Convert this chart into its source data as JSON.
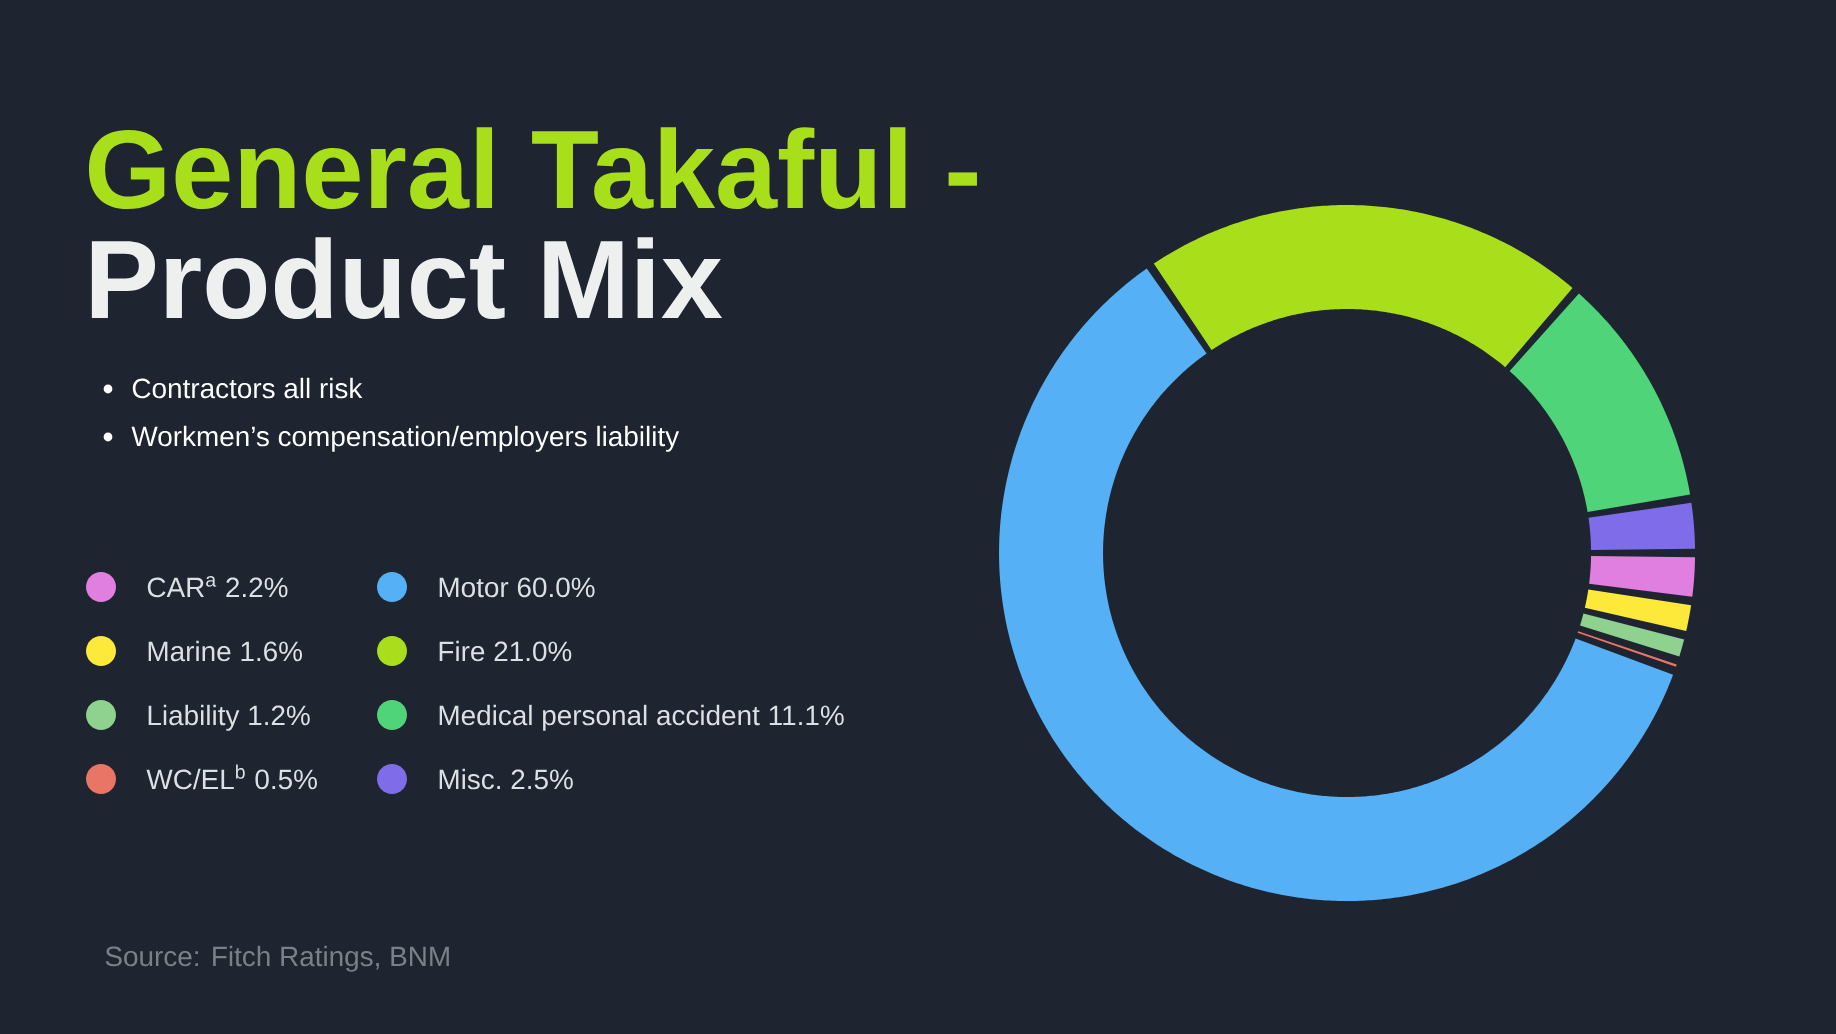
{
  "chart_data": {
    "type": "donut",
    "title": "General Takaful -",
    "subtitle": "Product Mix",
    "categories": [
      "CAR$^{a}$",
      "Marine",
      "Liability",
      "WC/EL$^{b}$",
      "Motor",
      "Fire",
      "Medical personal accident",
      "Misc."
    ],
    "values": [
      2.2,
      1.6,
      1.2,
      0.5,
      60.0,
      21.0,
      11.1,
      2.5
    ],
    "value_labels": [
      "2.2%",
      "1.6%",
      "1.2%",
      "0.5%",
      "60.0%",
      "21.0%",
      "11.1%",
      "2.5%"
    ],
    "colors": [
      "#e07fe0",
      "#fde93a",
      "#8fd18f",
      "#e87566",
      "#56b0f5",
      "#a8df1a",
      "#4fd47a",
      "#7e6ce8"
    ],
    "legend": "left",
    "annotations": [
      "Contractors all risk",
      "Workmen’s compensation/employers liability",
      "Source: Fitch Ratings, BNM"
    ]
  }
}
